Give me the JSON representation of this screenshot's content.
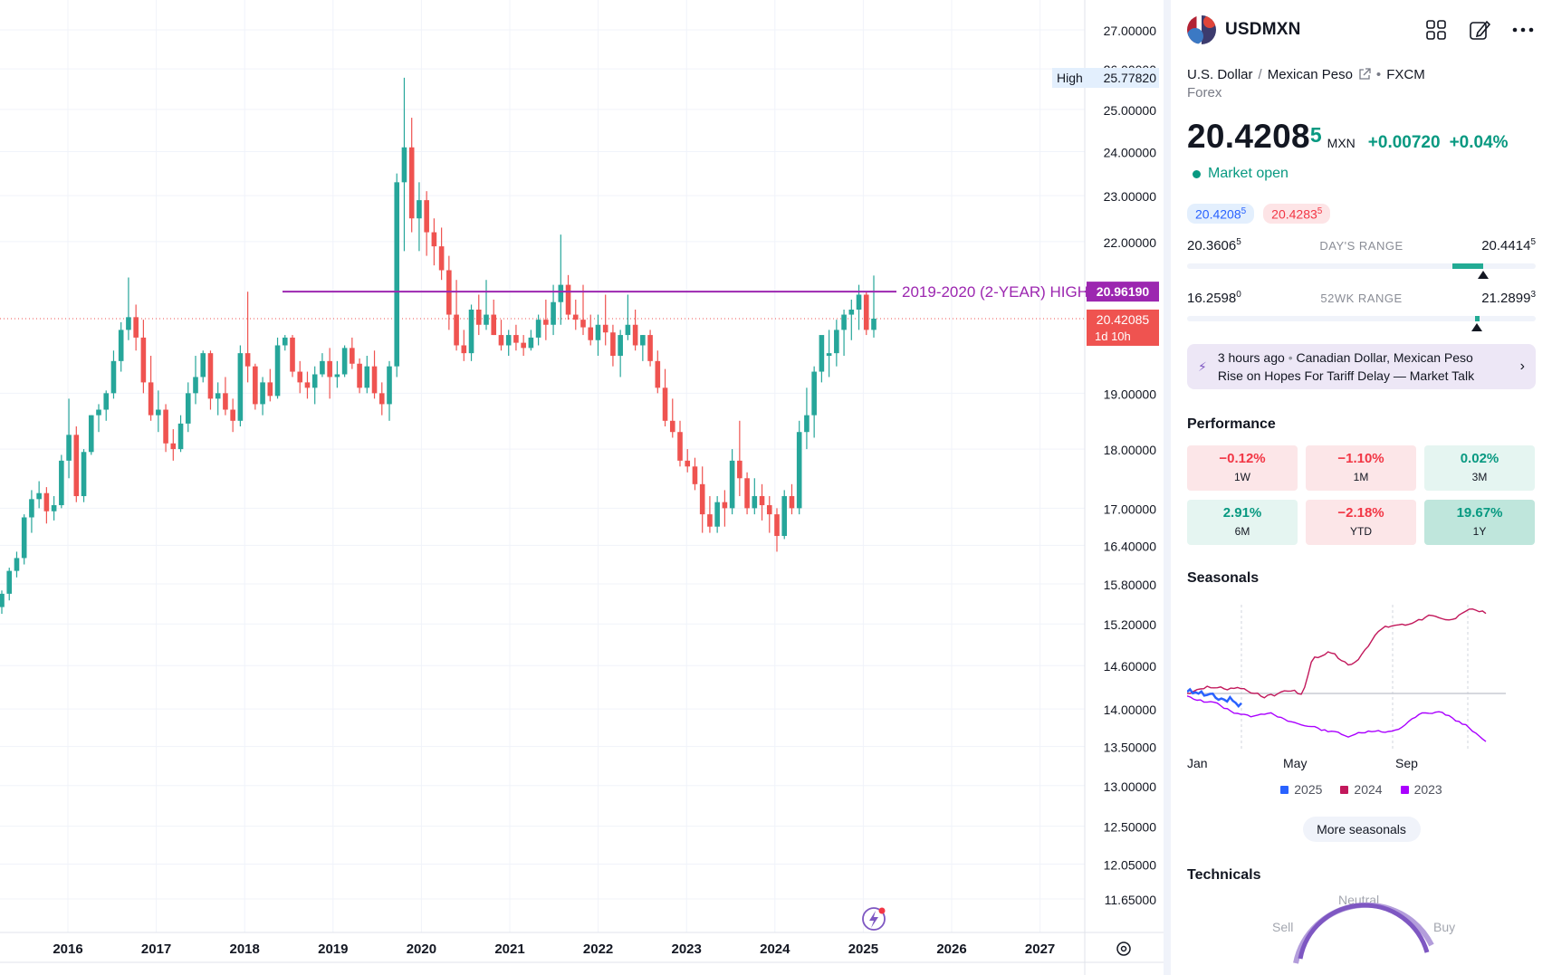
{
  "chart": {
    "x_axis_labels": [
      "2016",
      "2017",
      "2018",
      "2019",
      "2020",
      "2021",
      "2022",
      "2023",
      "2024",
      "2025",
      "2026",
      "2027"
    ],
    "y_axis_labels": [
      "27.00000",
      "26.00000",
      "25.00000",
      "24.00000",
      "23.00000",
      "22.00000",
      "19.00000",
      "18.00000",
      "17.00000",
      "16.40000",
      "15.80000",
      "15.20000",
      "14.60000",
      "14.00000",
      "13.50000",
      "13.00000",
      "12.50000",
      "12.05000",
      "11.65000"
    ],
    "high_label": "High",
    "high_value": "25.77820",
    "hline_label": "2019-2020 (2-YEAR) HIGH",
    "hline_value": "20.96190",
    "hline_color": "#9c27b0",
    "current_price": "20.42085",
    "countdown": "1d 10h",
    "up_color": "#26a69a",
    "down_color": "#ef5350",
    "candles": [
      [
        15.45,
        15.7,
        15.35,
        15.65
      ],
      [
        15.65,
        16.05,
        15.55,
        16.0
      ],
      [
        16.0,
        16.3,
        15.9,
        16.2
      ],
      [
        16.2,
        16.9,
        16.1,
        16.85
      ],
      [
        16.85,
        17.3,
        16.6,
        17.15
      ],
      [
        17.15,
        17.45,
        17.0,
        17.25
      ],
      [
        17.25,
        17.35,
        16.75,
        16.95
      ],
      [
        16.95,
        17.2,
        16.8,
        17.05
      ],
      [
        17.05,
        17.9,
        17.0,
        17.8
      ],
      [
        17.8,
        18.9,
        17.5,
        18.25
      ],
      [
        18.25,
        18.4,
        17.1,
        17.2
      ],
      [
        17.2,
        18.0,
        17.1,
        17.95
      ],
      [
        17.95,
        18.6,
        17.9,
        18.6
      ],
      [
        18.6,
        18.8,
        18.3,
        18.7
      ],
      [
        18.7,
        19.05,
        18.5,
        19.0
      ],
      [
        19.0,
        19.8,
        18.9,
        19.6
      ],
      [
        19.6,
        20.35,
        19.4,
        20.2
      ],
      [
        20.2,
        21.25,
        20.0,
        20.45
      ],
      [
        20.45,
        20.7,
        19.8,
        20.05
      ],
      [
        20.05,
        20.4,
        19.0,
        19.2
      ],
      [
        19.2,
        19.7,
        18.5,
        18.6
      ],
      [
        18.6,
        19.05,
        18.3,
        18.7
      ],
      [
        18.7,
        18.8,
        17.95,
        18.1
      ],
      [
        18.1,
        18.35,
        17.8,
        18.0
      ],
      [
        18.0,
        18.6,
        17.95,
        18.45
      ],
      [
        18.45,
        19.2,
        18.3,
        19.0
      ],
      [
        19.0,
        19.7,
        18.8,
        19.3
      ],
      [
        19.3,
        19.8,
        19.2,
        19.75
      ],
      [
        19.75,
        19.8,
        18.7,
        18.9
      ],
      [
        18.9,
        19.2,
        18.6,
        19.0
      ],
      [
        19.0,
        19.3,
        18.6,
        18.7
      ],
      [
        18.7,
        18.9,
        18.3,
        18.5
      ],
      [
        18.5,
        19.9,
        18.4,
        19.75
      ],
      [
        19.75,
        20.96,
        19.2,
        19.5
      ],
      [
        19.5,
        19.55,
        18.7,
        18.8
      ],
      [
        18.8,
        19.3,
        18.6,
        19.2
      ],
      [
        19.2,
        19.45,
        18.85,
        18.95
      ],
      [
        18.95,
        20.05,
        18.9,
        19.9
      ],
      [
        19.9,
        20.1,
        19.8,
        20.05
      ],
      [
        20.05,
        20.1,
        19.3,
        19.4
      ],
      [
        19.4,
        19.6,
        19.0,
        19.2
      ],
      [
        19.2,
        19.4,
        18.9,
        19.1
      ],
      [
        19.1,
        19.5,
        18.8,
        19.35
      ],
      [
        19.35,
        19.75,
        19.3,
        19.6
      ],
      [
        19.6,
        19.85,
        18.9,
        19.3
      ],
      [
        19.3,
        19.6,
        19.1,
        19.35
      ],
      [
        19.35,
        19.9,
        19.3,
        19.85
      ],
      [
        19.85,
        20.05,
        19.45,
        19.55
      ],
      [
        19.55,
        19.65,
        19.0,
        19.1
      ],
      [
        19.1,
        19.7,
        19.0,
        19.5
      ],
      [
        19.5,
        19.8,
        18.9,
        19.0
      ],
      [
        19.0,
        19.2,
        18.6,
        18.8
      ],
      [
        18.8,
        19.6,
        18.5,
        19.5
      ],
      [
        19.5,
        23.5,
        19.3,
        23.3
      ],
      [
        23.3,
        25.7782,
        21.8,
        24.1
      ],
      [
        24.1,
        24.8,
        22.2,
        22.5
      ],
      [
        22.5,
        23.3,
        21.8,
        22.9
      ],
      [
        22.9,
        23.1,
        21.7,
        22.2
      ],
      [
        22.2,
        22.5,
        21.5,
        21.9
      ],
      [
        21.9,
        22.3,
        21.2,
        21.4
      ],
      [
        21.4,
        21.7,
        20.2,
        20.5
      ],
      [
        20.5,
        21.2,
        19.8,
        19.9
      ],
      [
        19.9,
        20.2,
        19.6,
        19.75
      ],
      [
        19.75,
        20.7,
        19.6,
        20.6
      ],
      [
        20.6,
        20.9,
        20.1,
        20.3
      ],
      [
        20.3,
        21.2,
        20.2,
        20.5
      ],
      [
        20.5,
        20.8,
        20.1,
        20.1
      ],
      [
        20.1,
        20.4,
        19.8,
        19.9
      ],
      [
        19.9,
        20.2,
        19.7,
        20.1
      ],
      [
        20.1,
        20.3,
        19.8,
        19.95
      ],
      [
        19.95,
        20.1,
        19.7,
        19.85
      ],
      [
        19.85,
        20.2,
        19.8,
        20.05
      ],
      [
        20.05,
        20.5,
        19.9,
        20.4
      ],
      [
        20.4,
        20.8,
        20.0,
        20.3
      ],
      [
        20.3,
        21.1,
        20.1,
        20.75
      ],
      [
        20.75,
        22.15,
        20.3,
        21.1
      ],
      [
        21.1,
        21.3,
        20.4,
        20.5
      ],
      [
        20.5,
        20.8,
        20.2,
        20.4
      ],
      [
        20.4,
        21.1,
        20.1,
        20.25
      ],
      [
        20.25,
        20.5,
        19.9,
        20.0
      ],
      [
        20.0,
        20.5,
        19.7,
        20.3
      ],
      [
        20.3,
        20.9,
        19.9,
        20.15
      ],
      [
        20.15,
        20.3,
        19.5,
        19.7
      ],
      [
        19.7,
        20.2,
        19.3,
        20.1
      ],
      [
        20.1,
        20.9,
        20.0,
        20.3
      ],
      [
        20.3,
        20.6,
        19.8,
        19.9
      ],
      [
        19.9,
        20.1,
        19.6,
        20.1
      ],
      [
        20.1,
        20.2,
        19.5,
        19.6
      ],
      [
        19.6,
        19.8,
        19.0,
        19.1
      ],
      [
        19.1,
        19.45,
        18.4,
        18.5
      ],
      [
        18.5,
        18.9,
        18.2,
        18.3
      ],
      [
        18.3,
        18.5,
        17.7,
        17.8
      ],
      [
        17.8,
        18.0,
        17.6,
        17.7
      ],
      [
        17.7,
        17.85,
        17.3,
        17.4
      ],
      [
        17.4,
        17.7,
        16.6,
        16.9
      ],
      [
        16.9,
        17.2,
        16.6,
        16.7
      ],
      [
        16.7,
        17.2,
        16.6,
        17.1
      ],
      [
        17.1,
        17.3,
        16.7,
        17.0
      ],
      [
        17.0,
        18.0,
        16.9,
        17.8
      ],
      [
        17.8,
        18.5,
        17.2,
        17.5
      ],
      [
        17.5,
        17.6,
        16.9,
        17.0
      ],
      [
        17.0,
        17.5,
        16.9,
        17.2
      ],
      [
        17.2,
        17.4,
        16.8,
        17.05
      ],
      [
        17.05,
        17.2,
        16.6,
        16.9
      ],
      [
        16.9,
        17.0,
        16.3,
        16.55
      ],
      [
        16.55,
        17.3,
        16.5,
        17.2
      ],
      [
        17.2,
        17.4,
        16.9,
        17.0
      ],
      [
        17.0,
        18.5,
        16.9,
        18.3
      ],
      [
        18.3,
        19.1,
        18.0,
        18.6
      ],
      [
        18.6,
        19.5,
        18.2,
        19.4
      ],
      [
        19.4,
        20.0,
        19.2,
        20.1
      ],
      [
        19.7,
        20.2,
        19.3,
        19.75
      ],
      [
        19.75,
        20.4,
        19.5,
        20.2
      ],
      [
        20.2,
        20.6,
        19.7,
        20.5
      ],
      [
        20.5,
        20.8,
        20.0,
        20.6
      ],
      [
        20.6,
        21.1,
        20.2,
        20.9
      ],
      [
        20.9,
        20.95,
        20.1,
        20.2
      ],
      [
        20.2,
        21.29,
        20.05,
        20.42085
      ]
    ]
  },
  "panel": {
    "symbol": "USDMXN",
    "description_base": "U.S. Dollar",
    "description_sep": "/",
    "description_quote": "Mexican Peso",
    "exchange": "FXCM",
    "type": "Forex",
    "price_main": "20.4208",
    "price_last": "5",
    "currency": "MXN",
    "change": "+0.00720",
    "change_pct": "+0.04%",
    "market_status": "Market open",
    "bid_main": "20.4208",
    "bid_sup": "5",
    "ask_main": "20.4283",
    "ask_sup": "5",
    "day_low_main": "20.3606",
    "day_low_sup": "5",
    "day_range_label": "DAY'S RANGE",
    "day_high_main": "20.4414",
    "day_high_sup": "5",
    "day_range_position": 0.85,
    "wk_low_main": "16.2598",
    "wk_low_sup": "0",
    "wk_range_label": "52WK RANGE",
    "wk_high_main": "21.2899",
    "wk_high_sup": "3",
    "wk_range_position": 0.83,
    "news_time": "3 hours ago",
    "news_headline_1": "Canadian Dollar, Mexican Peso",
    "news_headline_2": "Rise on Hopes For Tariff Delay — Market Talk",
    "performance_title": "Performance",
    "performance": [
      {
        "value": "−0.12%",
        "label": "1W",
        "tone": "neg"
      },
      {
        "value": "−1.10%",
        "label": "1M",
        "tone": "neg"
      },
      {
        "value": "0.02%",
        "label": "3M",
        "tone": "pos"
      },
      {
        "value": "2.91%",
        "label": "6M",
        "tone": "pos"
      },
      {
        "value": "−2.18%",
        "label": "YTD",
        "tone": "neg"
      },
      {
        "value": "19.67%",
        "label": "1Y",
        "tone": "pos-strong"
      }
    ],
    "seasonals_title": "Seasonals",
    "seasonal_months": [
      "Jan",
      "May",
      "Sep"
    ],
    "seasonal_legend": [
      {
        "name": "2025",
        "color": "#2962ff"
      },
      {
        "name": "2024",
        "color": "#c2185b"
      },
      {
        "name": "2023",
        "color": "#aa00ff"
      }
    ],
    "more_seasonals": "More seasonals",
    "technicals_title": "Technicals",
    "gauge_neutral": "Neutral",
    "gauge_sell": "Sell",
    "gauge_buy": "Buy"
  }
}
